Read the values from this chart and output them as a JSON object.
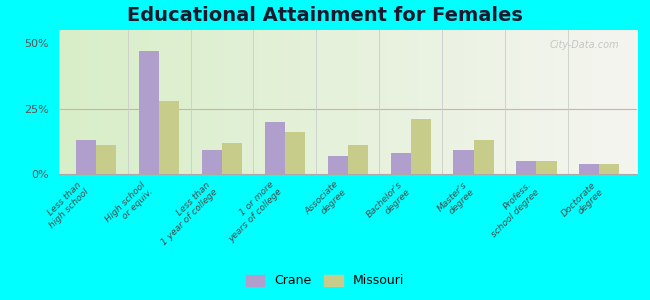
{
  "title": "Educational Attainment for Females",
  "categories": [
    "Less than\nhigh school",
    "High school\nor equiv.",
    "Less than\n1 year of college",
    "1 or more\nyears of college",
    "Associate\ndegree",
    "Bachelor's\ndegree",
    "Master's\ndegree",
    "Profess.\nschool degree",
    "Doctorate\ndegree"
  ],
  "crane_values": [
    13,
    47,
    9,
    20,
    7,
    8,
    9,
    5,
    4
  ],
  "missouri_values": [
    11,
    28,
    12,
    16,
    11,
    21,
    13,
    5,
    4
  ],
  "crane_color": "#b09fcc",
  "missouri_color": "#c8cc8a",
  "ylim": [
    0,
    55
  ],
  "yticks": [
    0,
    25,
    50
  ],
  "ytick_labels": [
    "0%",
    "25%",
    "50%"
  ],
  "bg_left_color": "#d8eec8",
  "bg_right_color": "#f5f5f0",
  "outer_background": "#00ffff",
  "title_fontsize": 14,
  "watermark": "City-Data.com"
}
